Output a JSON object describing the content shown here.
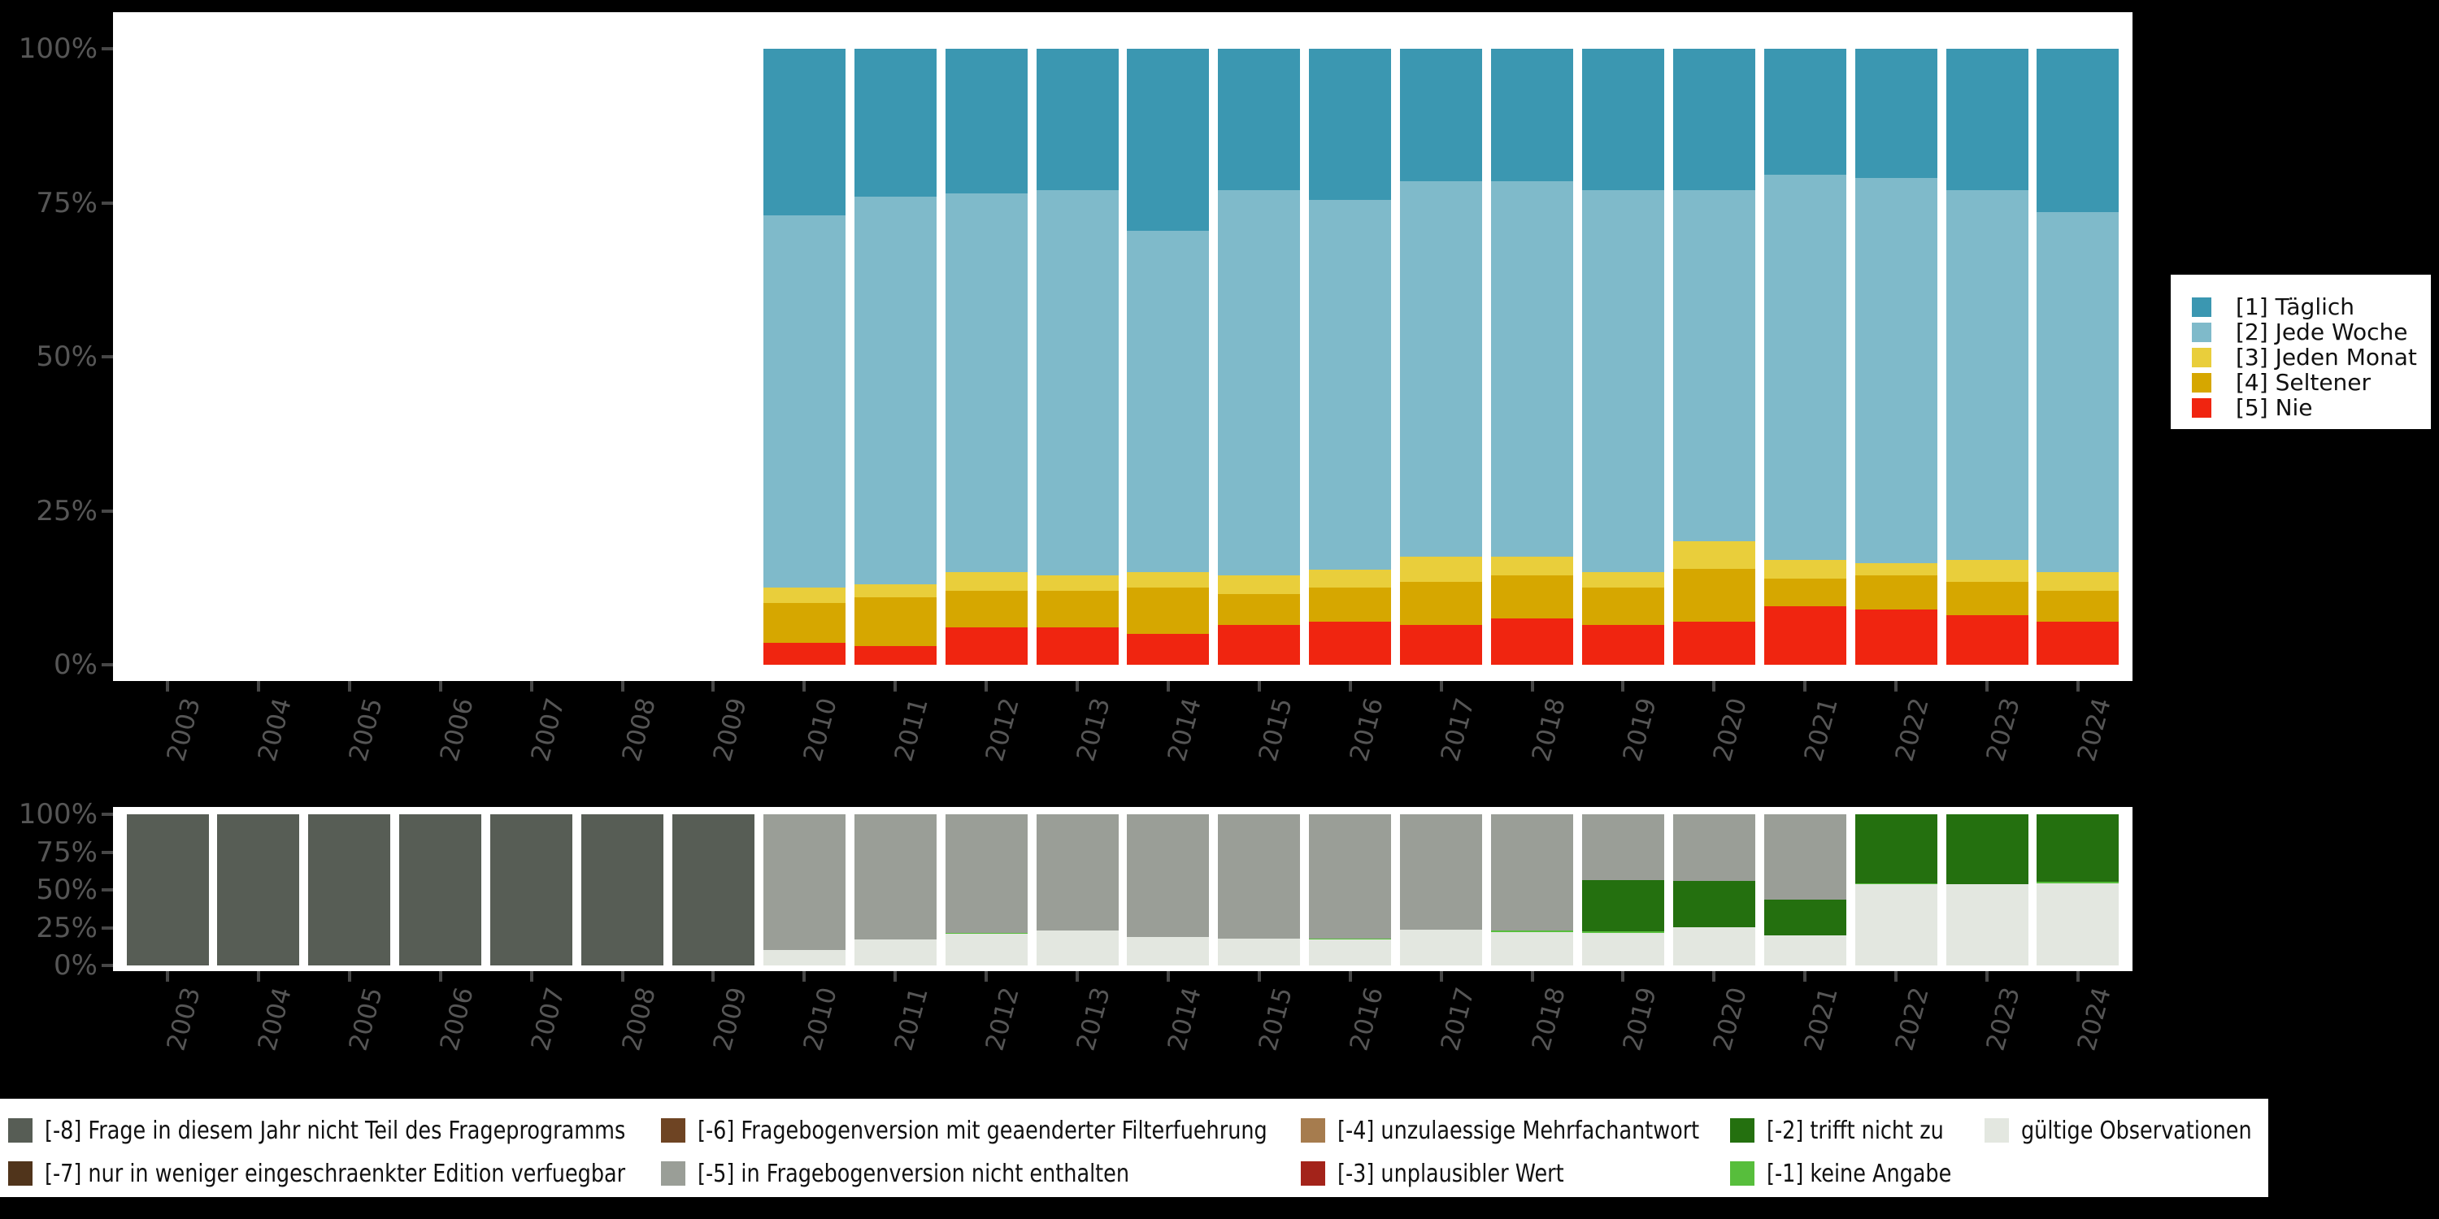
{
  "background_color": "#000000",
  "panel_color": "#ffffff",
  "axis_text_color": "#565656",
  "tick_color": "#474747",
  "axis": {
    "y_tick_labels": [
      "100%",
      "75%",
      "50%",
      "25%",
      "0%"
    ],
    "x_tick_labels": [
      "2003",
      "2004",
      "2005",
      "2006",
      "2007",
      "2008",
      "2009",
      "2010",
      "2011",
      "2012",
      "2013",
      "2014",
      "2015",
      "2016",
      "2017",
      "2018",
      "2019",
      "2020",
      "2021",
      "2022",
      "2023",
      "2024"
    ],
    "x_tick_rotation_deg": 75
  },
  "top_legend": {
    "items": [
      {
        "label": "[1] Täglich",
        "color": "#3B97B1"
      },
      {
        "label": "[2] Jede Woche",
        "color": "#7FBACA"
      },
      {
        "label": "[3] Jeden Monat",
        "color": "#E9CE3B"
      },
      {
        "label": "[4] Seltener",
        "color": "#D6A700"
      },
      {
        "label": "[5] Nie",
        "color": "#F02510"
      }
    ]
  },
  "bottom_legend": {
    "columns": [
      [
        {
          "label": "[-8] Frage in diesem Jahr nicht Teil des Frageprogramms",
          "color": "#575D55"
        },
        {
          "label": "[-7] nur in weniger eingeschraenkter Edition verfuegbar",
          "color": "#50341B"
        }
      ],
      [
        {
          "label": "[-6] Fragebogenversion mit geaenderter Filterfuehrung",
          "color": "#6E4423"
        },
        {
          "label": "[-5] in Fragebogenversion nicht enthalten",
          "color": "#9A9E97"
        }
      ],
      [
        {
          "label": "[-4] unzulaessige Mehrfachantwort",
          "color": "#A67C4E"
        },
        {
          "label": "[-3] unplausibler Wert",
          "color": "#A3231A"
        }
      ],
      [
        {
          "label": "[-2] trifft nicht zu",
          "color": "#24700F"
        },
        {
          "label": "[-1] keine Angabe",
          "color": "#57BE3C"
        }
      ],
      [
        {
          "label": "gültige Observationen",
          "color": "#E3E7E0"
        }
      ]
    ]
  },
  "chart_data": [
    {
      "type": "bar",
      "stacked": true,
      "stack_total": 100,
      "title": "",
      "xlabel": "",
      "ylabel": "",
      "ylim": [
        0,
        100
      ],
      "grid": false,
      "legend_position": "right",
      "categories": [
        2003,
        2004,
        2005,
        2006,
        2007,
        2008,
        2009,
        2010,
        2011,
        2012,
        2013,
        2014,
        2015,
        2016,
        2017,
        2018,
        2019,
        2020,
        2021,
        2022,
        2023,
        2024
      ],
      "series": [
        {
          "name": "[1] Täglich",
          "color": "#3B97B1",
          "values": [
            null,
            null,
            null,
            null,
            null,
            null,
            null,
            27,
            24,
            23.5,
            23,
            29.5,
            23,
            24.5,
            21.5,
            21.5,
            23,
            23,
            20.5,
            21,
            23,
            26.5
          ]
        },
        {
          "name": "[2] Jede Woche",
          "color": "#7FBACA",
          "values": [
            null,
            null,
            null,
            null,
            null,
            null,
            null,
            60.5,
            63,
            61.5,
            62.5,
            55.5,
            62.5,
            60,
            61,
            61,
            62,
            57,
            62.5,
            62.5,
            60,
            58.5
          ]
        },
        {
          "name": "[3] Jeden Monat",
          "color": "#E9CE3B",
          "values": [
            null,
            null,
            null,
            null,
            null,
            null,
            null,
            2.5,
            2,
            3,
            2.5,
            2.5,
            3,
            3,
            4,
            3,
            2.5,
            4.5,
            3,
            2,
            3.5,
            3
          ]
        },
        {
          "name": "[4] Seltener",
          "color": "#D6A700",
          "values": [
            null,
            null,
            null,
            null,
            null,
            null,
            null,
            6.5,
            8,
            6,
            6,
            7.5,
            5,
            5.5,
            7,
            7,
            6,
            8.5,
            4.5,
            5.5,
            5.5,
            5
          ]
        },
        {
          "name": "[5] Nie",
          "color": "#F02510",
          "values": [
            null,
            null,
            null,
            null,
            null,
            null,
            null,
            3.5,
            3,
            6,
            6,
            5,
            6.5,
            7,
            6.5,
            7.5,
            6.5,
            7,
            9.5,
            9,
            8,
            7
          ]
        }
      ]
    },
    {
      "type": "bar",
      "stacked": true,
      "stack_total": 100,
      "title": "",
      "xlabel": "",
      "ylabel": "",
      "ylim": [
        0,
        100
      ],
      "grid": false,
      "legend_position": "bottom",
      "categories": [
        2003,
        2004,
        2005,
        2006,
        2007,
        2008,
        2009,
        2010,
        2011,
        2012,
        2013,
        2014,
        2015,
        2016,
        2017,
        2018,
        2019,
        2020,
        2021,
        2022,
        2023,
        2024
      ],
      "series": [
        {
          "name": "[-8] Frage in diesem Jahr nicht Teil des Frageprogramms",
          "color": "#575D55",
          "values": [
            100,
            100,
            100,
            100,
            100,
            100,
            100,
            0,
            0,
            0,
            0,
            0,
            0,
            0,
            0,
            0,
            0,
            0,
            0,
            0,
            0,
            0
          ]
        },
        {
          "name": "[-7] nur in weniger eingeschraenkter Edition verfuegbar",
          "color": "#50341B",
          "values": [
            0,
            0,
            0,
            0,
            0,
            0,
            0,
            0,
            0,
            0,
            0,
            0,
            0,
            0,
            0,
            0,
            0,
            0,
            0,
            0,
            0,
            0
          ]
        },
        {
          "name": "[-6] Fragebogenversion mit geaenderter Filterfuehrung",
          "color": "#6E4423",
          "values": [
            0,
            0,
            0,
            0,
            0,
            0,
            0,
            0,
            0,
            0,
            0,
            0,
            0,
            0,
            0,
            0,
            0,
            0,
            0,
            0,
            0,
            0
          ]
        },
        {
          "name": "[-5] in Fragebogenversion nicht enthalten",
          "color": "#9A9E97",
          "values": [
            0,
            0,
            0,
            0,
            0,
            0,
            0,
            90,
            83,
            78.5,
            77,
            81,
            82,
            82.5,
            76.5,
            77,
            43.5,
            44,
            56.5,
            0,
            0,
            0
          ]
        },
        {
          "name": "[-4] unzulaessige Mehrfachantwort",
          "color": "#A67C4E",
          "values": [
            0,
            0,
            0,
            0,
            0,
            0,
            0,
            0,
            0,
            0,
            0,
            0,
            0,
            0,
            0,
            0,
            0,
            0,
            0,
            0,
            0,
            0
          ]
        },
        {
          "name": "[-3] unplausibler Wert",
          "color": "#A3231A",
          "values": [
            0,
            0,
            0,
            0,
            0,
            0,
            0,
            0,
            0,
            0,
            0,
            0,
            0,
            0,
            0,
            0,
            0,
            0,
            0,
            0,
            0,
            0
          ]
        },
        {
          "name": "[-2] trifft nicht zu",
          "color": "#24700F",
          "values": [
            0,
            0,
            0,
            0,
            0,
            0,
            0,
            0,
            0,
            0,
            0,
            0,
            0,
            0,
            0,
            0,
            34,
            31,
            23.5,
            45.5,
            46,
            44.5
          ]
        },
        {
          "name": "[-1] keine Angabe",
          "color": "#57BE3C",
          "values": [
            0,
            0,
            0,
            0,
            0,
            0,
            0,
            0,
            0,
            0.5,
            0,
            0,
            0,
            0.5,
            0,
            1,
            1,
            0,
            0,
            1,
            0.5,
            1
          ]
        },
        {
          "name": "gültige Observationen",
          "color": "#E3E7E0",
          "values": [
            0,
            0,
            0,
            0,
            0,
            0,
            0,
            10,
            17,
            21,
            23,
            19,
            18,
            17,
            23.5,
            22,
            21.5,
            25,
            20,
            53.5,
            53.5,
            54.5
          ]
        }
      ]
    }
  ]
}
